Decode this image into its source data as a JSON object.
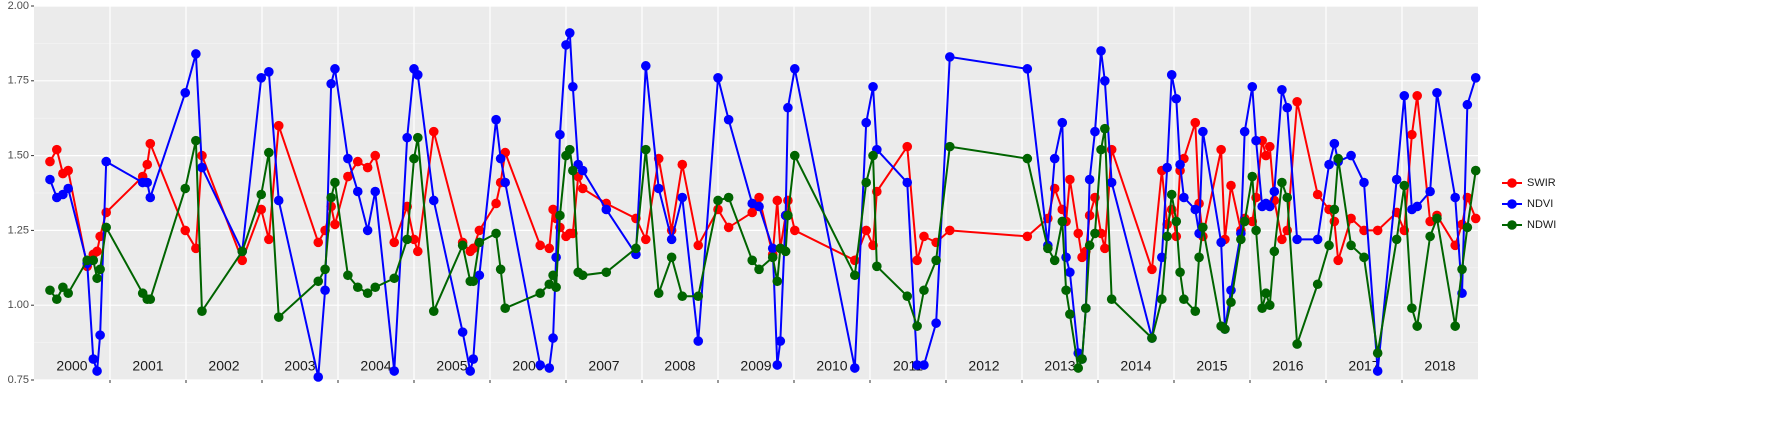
{
  "chart_data": {
    "type": "line",
    "x": [
      2000.21,
      2000.3,
      2000.38,
      2000.45,
      2000.7,
      2000.78,
      2000.83,
      2000.87,
      2000.95,
      2001.43,
      2001.49,
      2001.53,
      2001.99,
      2002.13,
      2002.21,
      2002.74,
      2002.99,
      2003.09,
      2003.22,
      2003.74,
      2003.83,
      2003.91,
      2003.96,
      2004.13,
      2004.26,
      2004.39,
      2004.49,
      2004.74,
      2004.91,
      2005.0,
      2005.05,
      2005.26,
      2005.64,
      2005.74,
      2005.78,
      2005.86,
      2006.08,
      2006.14,
      2006.2,
      2006.66,
      2006.78,
      2006.83,
      2006.87,
      2006.92,
      2007.0,
      2007.05,
      2007.09,
      2007.16,
      2007.22,
      2007.53,
      2007.92,
      2008.05,
      2008.22,
      2008.39,
      2008.53,
      2008.74,
      2009.0,
      2009.14,
      2009.45,
      2009.54,
      2009.72,
      2009.78,
      2009.82,
      2009.89,
      2009.92,
      2010.01,
      2010.8,
      2010.95,
      2011.04,
      2011.09,
      2011.49,
      2011.62,
      2011.71,
      2011.87,
      2012.05,
      2013.07,
      2013.34,
      2013.43,
      2013.53,
      2013.58,
      2013.63,
      2013.74,
      2013.79,
      2013.84,
      2013.89,
      2013.96,
      2014.04,
      2014.09,
      2014.18,
      2014.71,
      2014.84,
      2014.91,
      2014.97,
      2015.03,
      2015.08,
      2015.13,
      2015.28,
      2015.33,
      2015.38,
      2015.62,
      2015.67,
      2015.75,
      2015.88,
      2015.93,
      2016.03,
      2016.08,
      2016.16,
      2016.21,
      2016.26,
      2016.32,
      2016.42,
      2016.49,
      2016.62,
      2016.89,
      2017.04,
      2017.11,
      2017.16,
      2017.33,
      2017.5,
      2017.68,
      2017.93,
      2018.03,
      2018.13,
      2018.2,
      2018.37,
      2018.46,
      2018.7,
      2018.79,
      2018.86,
      2018.97
    ],
    "series": [
      {
        "name": "SWIR",
        "color": "#ff0000",
        "values": [
          1.48,
          1.52,
          1.44,
          1.45,
          1.13,
          1.17,
          1.18,
          1.23,
          1.31,
          1.43,
          1.47,
          1.54,
          1.25,
          1.19,
          1.5,
          1.15,
          1.32,
          1.22,
          1.6,
          1.21,
          1.25,
          1.33,
          1.27,
          1.43,
          1.48,
          1.46,
          1.5,
          1.21,
          1.33,
          1.22,
          1.18,
          1.58,
          1.21,
          1.18,
          1.19,
          1.25,
          1.34,
          1.41,
          1.51,
          1.2,
          1.19,
          1.32,
          1.29,
          1.26,
          1.23,
          1.24,
          1.24,
          1.43,
          1.39,
          1.34,
          1.29,
          1.22,
          1.49,
          1.25,
          1.47,
          1.2,
          1.32,
          1.26,
          1.31,
          1.36,
          1.17,
          1.35,
          1.19,
          1.3,
          1.35,
          1.25,
          1.15,
          1.25,
          1.2,
          1.38,
          1.53,
          1.15,
          1.23,
          1.21,
          1.25,
          1.23,
          1.29,
          1.39,
          1.32,
          1.28,
          1.42,
          1.24,
          1.16,
          1.18,
          1.3,
          1.36,
          1.24,
          1.19,
          1.52,
          1.12,
          1.45,
          1.27,
          1.32,
          1.23,
          1.45,
          1.49,
          1.61,
          1.34,
          1.23,
          1.52,
          1.22,
          1.4,
          1.25,
          1.29,
          1.28,
          1.36,
          1.55,
          1.5,
          1.53,
          1.35,
          1.22,
          1.25,
          1.68,
          1.37,
          1.32,
          1.28,
          1.15,
          1.29,
          1.25,
          1.25,
          1.31,
          1.25,
          1.57,
          1.7,
          1.28,
          1.3,
          1.2,
          1.27,
          1.36,
          1.29
        ]
      },
      {
        "name": "NDVI",
        "color": "#0000ff",
        "values": [
          1.42,
          1.36,
          1.37,
          1.39,
          1.14,
          0.82,
          0.78,
          0.9,
          1.48,
          1.41,
          1.41,
          1.36,
          1.71,
          1.84,
          1.46,
          1.18,
          1.76,
          1.78,
          1.35,
          0.76,
          1.05,
          1.74,
          1.79,
          1.49,
          1.38,
          1.25,
          1.38,
          0.78,
          1.56,
          1.79,
          1.77,
          1.35,
          0.91,
          0.78,
          0.82,
          1.1,
          1.62,
          1.49,
          1.41,
          0.8,
          0.79,
          0.89,
          1.16,
          1.57,
          1.87,
          1.91,
          1.73,
          1.47,
          1.45,
          1.32,
          1.17,
          1.8,
          1.39,
          1.22,
          1.36,
          0.88,
          1.76,
          1.62,
          1.34,
          1.33,
          1.19,
          0.8,
          0.88,
          1.3,
          1.66,
          1.79,
          0.79,
          1.61,
          1.73,
          1.52,
          1.41,
          0.8,
          0.8,
          0.94,
          1.83,
          1.79,
          1.2,
          1.49,
          1.61,
          1.16,
          1.11,
          0.84,
          0.82,
          0.99,
          1.42,
          1.58,
          1.85,
          1.75,
          1.41,
          0.89,
          1.16,
          1.46,
          1.77,
          1.69,
          1.47,
          1.36,
          1.32,
          1.24,
          1.58,
          1.21,
          0.92,
          1.05,
          1.24,
          1.58,
          1.73,
          1.55,
          1.33,
          1.34,
          1.33,
          1.38,
          1.72,
          1.66,
          1.22,
          1.22,
          1.47,
          1.54,
          1.48,
          1.5,
          1.41,
          0.78,
          1.42,
          1.7,
          1.32,
          1.33,
          1.38,
          1.71,
          1.36,
          1.04,
          1.67,
          1.76
        ]
      },
      {
        "name": "NDWI",
        "color": "#006400",
        "values": [
          1.05,
          1.02,
          1.06,
          1.04,
          1.15,
          1.15,
          1.09,
          1.12,
          1.26,
          1.04,
          1.02,
          1.02,
          1.39,
          1.55,
          0.98,
          1.18,
          1.37,
          1.51,
          0.96,
          1.08,
          1.12,
          1.36,
          1.41,
          1.1,
          1.06,
          1.04,
          1.06,
          1.09,
          1.22,
          1.49,
          1.56,
          0.98,
          1.2,
          1.08,
          1.08,
          1.21,
          1.24,
          1.12,
          0.99,
          1.04,
          1.07,
          1.1,
          1.06,
          1.3,
          1.5,
          1.52,
          1.45,
          1.11,
          1.1,
          1.11,
          1.19,
          1.52,
          1.04,
          1.16,
          1.03,
          1.03,
          1.35,
          1.36,
          1.15,
          1.12,
          1.16,
          1.08,
          1.19,
          1.18,
          1.3,
          1.5,
          1.1,
          1.41,
          1.5,
          1.13,
          1.03,
          0.93,
          1.05,
          1.15,
          1.53,
          1.49,
          1.19,
          1.15,
          1.28,
          1.05,
          0.97,
          0.79,
          0.82,
          0.99,
          1.2,
          1.24,
          1.52,
          1.59,
          1.02,
          0.89,
          1.02,
          1.23,
          1.37,
          1.28,
          1.11,
          1.02,
          0.98,
          1.16,
          1.26,
          0.93,
          0.92,
          1.01,
          1.22,
          1.28,
          1.43,
          1.25,
          0.99,
          1.04,
          1.0,
          1.18,
          1.41,
          1.36,
          0.87,
          1.07,
          1.2,
          1.32,
          1.49,
          1.2,
          1.16,
          0.84,
          1.22,
          1.4,
          0.99,
          0.93,
          1.23,
          1.29,
          0.93,
          1.12,
          1.26,
          1.45
        ]
      }
    ],
    "xlim": [
      2000,
      2019
    ],
    "xgrid": [
      2001,
      2002,
      2003,
      2004,
      2005,
      2006,
      2007,
      2008,
      2009,
      2010,
      2011,
      2012,
      2013,
      2014,
      2015,
      2016,
      2017,
      2018
    ],
    "year_labels": [
      {
        "value": 2000.5,
        "label": "2000"
      },
      {
        "value": 2001.5,
        "label": "2001"
      },
      {
        "value": 2002.5,
        "label": "2002"
      },
      {
        "value": 2003.5,
        "label": "2003"
      },
      {
        "value": 2004.5,
        "label": "2004"
      },
      {
        "value": 2005.5,
        "label": "2005"
      },
      {
        "value": 2006.5,
        "label": "2006"
      },
      {
        "value": 2007.5,
        "label": "2007"
      },
      {
        "value": 2008.5,
        "label": "2008"
      },
      {
        "value": 2009.5,
        "label": "2009"
      },
      {
        "value": 2010.5,
        "label": "2010"
      },
      {
        "value": 2011.5,
        "label": "2011"
      },
      {
        "value": 2012.5,
        "label": "2012"
      },
      {
        "value": 2013.5,
        "label": "2013"
      },
      {
        "value": 2014.5,
        "label": "2014"
      },
      {
        "value": 2015.5,
        "label": "2015"
      },
      {
        "value": 2016.5,
        "label": "2016"
      },
      {
        "value": 2017.5,
        "label": "2017"
      },
      {
        "value": 2018.5,
        "label": "2018"
      }
    ],
    "ylim": [
      0.75,
      2.0
    ],
    "yticks": [
      0.75,
      {
        "value": 1.0,
        "label": "1.00"
      },
      1.25,
      {
        "value": 1.5,
        "label": "1.50"
      },
      1.75,
      {
        "value": 2.0,
        "label": "2.00"
      }
    ],
    "grid": true,
    "legend": "right"
  }
}
